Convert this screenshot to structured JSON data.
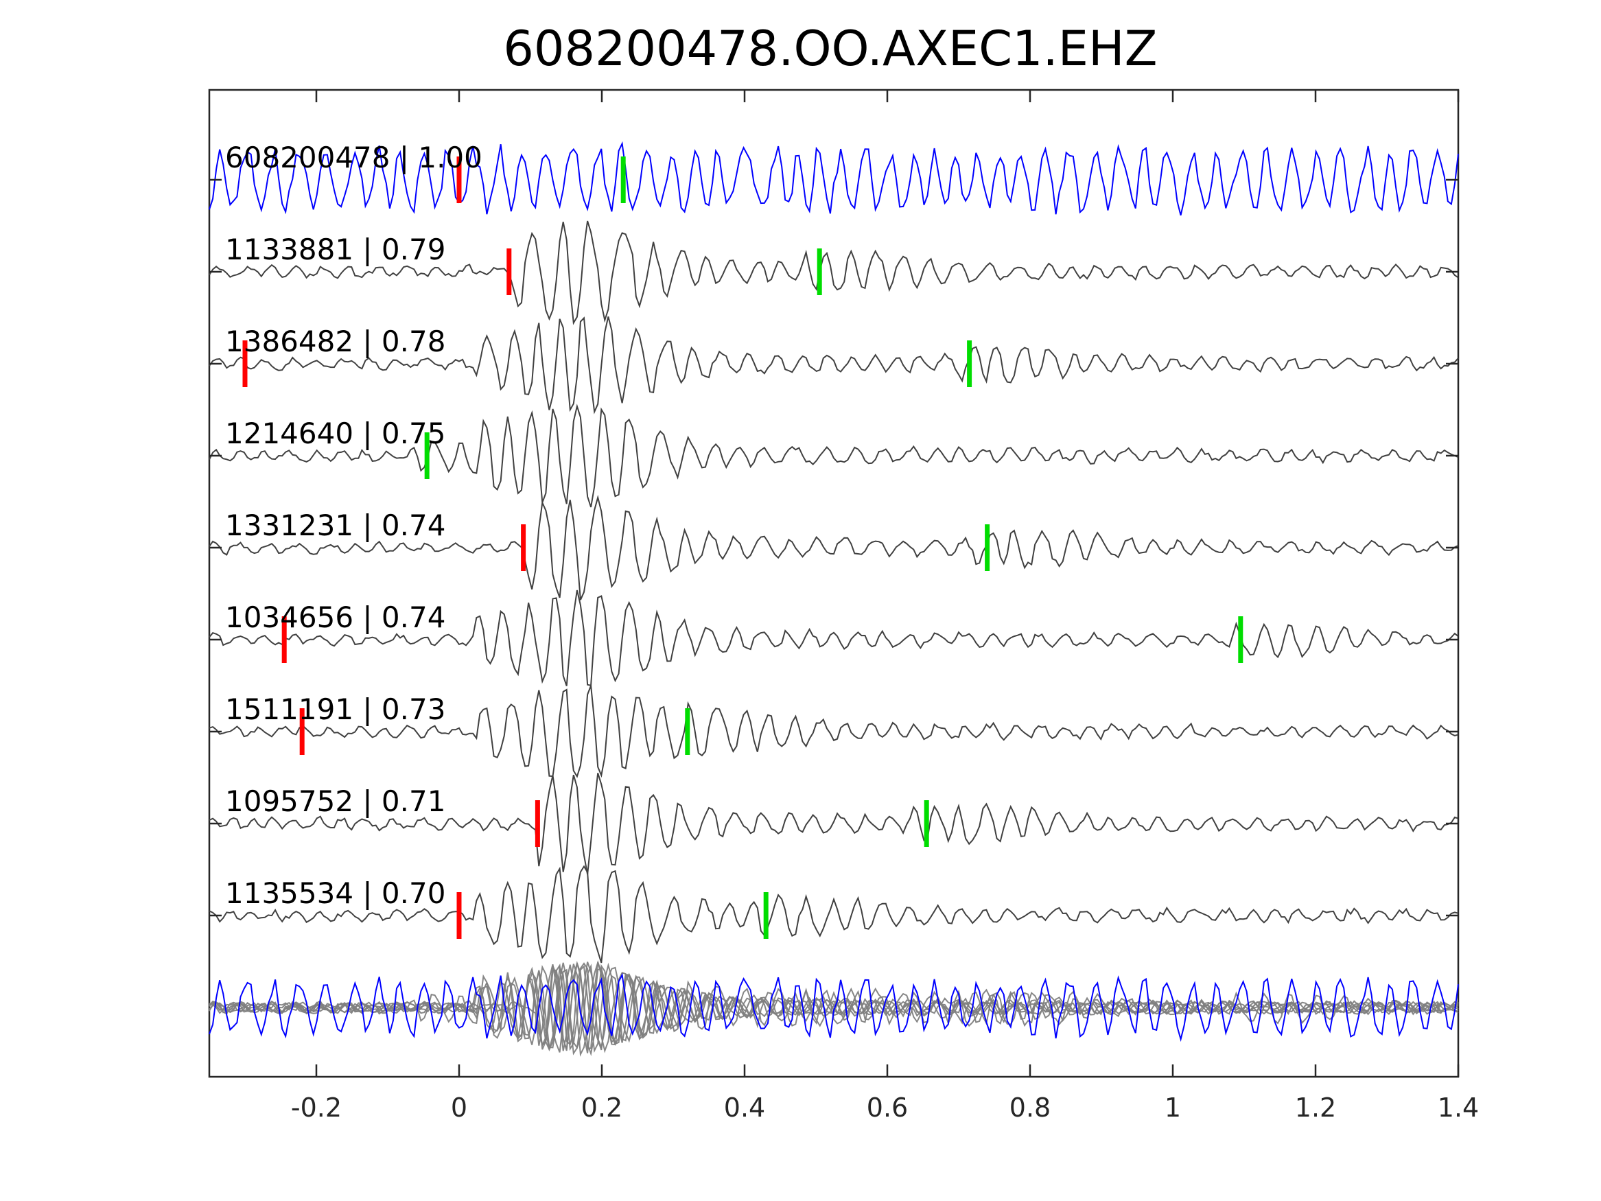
{
  "chart_data": {
    "type": "line",
    "title": "608200478.OO.AXEC1.EHZ",
    "xlabel": "",
    "ylabel": "",
    "xlim": [
      -0.35,
      1.4
    ],
    "x_ticks": [
      -0.2,
      0,
      0.2,
      0.4,
      0.6,
      0.8,
      1,
      1.2,
      1.4
    ],
    "x_tick_labels": [
      "-0.2",
      "0",
      "0.2",
      "0.4",
      "0.6",
      "0.8",
      "1",
      "1.2",
      "1.4"
    ],
    "grid": false,
    "colors": {
      "master": "#0000ff",
      "template": "#404040",
      "stack_template": "#808080",
      "p_pick": "#ff0000",
      "s_pick": "#00dd00"
    },
    "traces": [
      {
        "label": "608200478 | 1.00",
        "id": "608200478",
        "cc": 1.0,
        "p_pick": 0.0,
        "s_pick": 0.23,
        "style": "master"
      },
      {
        "label": "1133881 | 0.79",
        "id": "1133881",
        "cc": 0.79,
        "p_pick": 0.07,
        "s_pick": 0.505,
        "style": "template"
      },
      {
        "label": "1386482 | 0.78",
        "id": "1386482",
        "cc": 0.78,
        "p_pick": -0.3,
        "s_pick": 0.715,
        "style": "template"
      },
      {
        "label": "1214640 | 0.75",
        "id": "1214640",
        "cc": 0.75,
        "p_pick": null,
        "s_pick": -0.045,
        "style": "template"
      },
      {
        "label": "1331231 | 0.74",
        "id": "1331231",
        "cc": 0.74,
        "p_pick": 0.09,
        "s_pick": 0.74,
        "style": "template"
      },
      {
        "label": "1034656 | 0.74",
        "id": "1034656",
        "cc": 0.74,
        "p_pick": -0.245,
        "s_pick": 1.095,
        "style": "template"
      },
      {
        "label": "1511191 | 0.73",
        "id": "1511191",
        "cc": 0.73,
        "p_pick": -0.22,
        "s_pick": 0.32,
        "style": "template"
      },
      {
        "label": "1095752 | 0.71",
        "id": "1095752",
        "cc": 0.71,
        "p_pick": 0.11,
        "s_pick": 0.655,
        "style": "template"
      },
      {
        "label": "1135534 | 0.70",
        "id": "1135534",
        "cc": 0.7,
        "p_pick": 0.0,
        "s_pick": 0.43,
        "style": "template"
      }
    ]
  }
}
